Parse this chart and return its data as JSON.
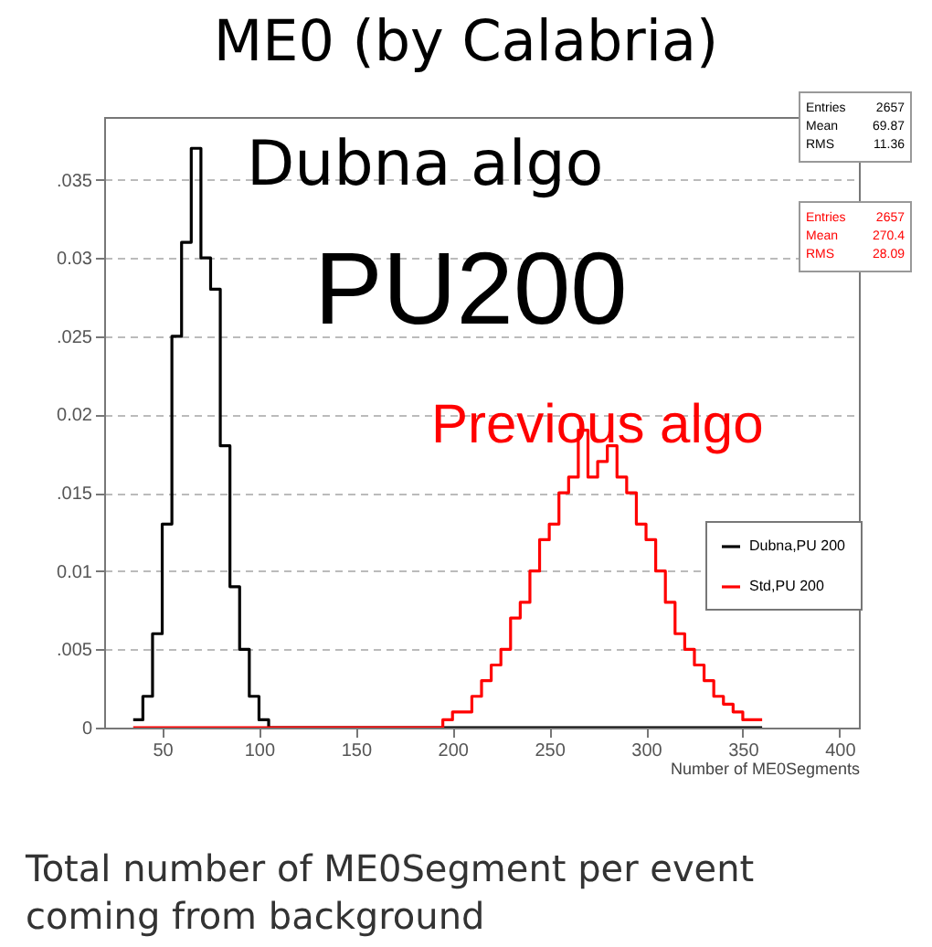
{
  "chart_data": {
    "type": "histogram",
    "title": "ME0 (by Calabria)",
    "xlabel": "Number of ME0Segments",
    "annotations": [
      "Dubna algo",
      "PU200",
      "Previous algo",
      "Entries 2657",
      "Mean 69.87",
      "RMS 11.36",
      "Entries 2657",
      "Mean 270.4",
      "RMS 28.09",
      "Total number of ME0Segment per event coming from background"
    ],
    "bins": [
      35,
      40,
      45,
      50,
      55,
      60,
      65,
      70,
      75,
      80,
      85,
      90,
      95,
      100,
      105,
      110,
      115,
      120,
      125,
      130,
      135,
      140,
      145,
      150,
      155,
      160,
      165,
      170,
      175,
      180,
      185,
      190,
      195,
      200,
      205,
      210,
      215,
      220,
      225,
      230,
      235,
      240,
      245,
      250,
      255,
      260,
      265,
      270,
      275,
      280,
      285,
      290,
      295,
      300,
      305,
      310,
      315,
      320,
      325,
      330,
      335,
      340,
      345,
      350,
      355,
      360
    ],
    "series": [
      {
        "name": "Dubna,PU 200",
        "color": "#000000",
        "values": [
          0.0005,
          0.002,
          0.006,
          0.013,
          0.025,
          0.031,
          0.037,
          0.03,
          0.028,
          0.018,
          0.009,
          0.005,
          0.002,
          0.0005,
          0,
          0,
          0,
          0,
          0,
          0,
          0,
          0,
          0,
          0,
          0,
          0,
          0,
          0,
          0,
          0,
          0,
          0,
          0,
          0,
          0,
          0,
          0,
          0,
          0,
          0,
          0,
          0,
          0,
          0,
          0,
          0,
          0,
          0,
          0,
          0,
          0,
          0,
          0,
          0,
          0,
          0,
          0,
          0,
          0,
          0,
          0,
          0,
          0,
          0,
          0
        ]
      },
      {
        "name": "Std,PU 200",
        "color": "#ff0000",
        "values": [
          0,
          0,
          0,
          0,
          0,
          0,
          0,
          0,
          0,
          0,
          0,
          0,
          0,
          0,
          0,
          0,
          0,
          0,
          0,
          0,
          0,
          0,
          0,
          0,
          0,
          0,
          0,
          0,
          0,
          0,
          0,
          0,
          0.0005,
          0.001,
          0.001,
          0.002,
          0.003,
          0.004,
          0.005,
          0.007,
          0.008,
          0.01,
          0.012,
          0.013,
          0.015,
          0.016,
          0.019,
          0.016,
          0.017,
          0.018,
          0.016,
          0.015,
          0.013,
          0.012,
          0.01,
          0.008,
          0.006,
          0.005,
          0.004,
          0.003,
          0.002,
          0.0015,
          0.001,
          0.0005,
          0.0005
        ]
      }
    ],
    "xlim": [
      20,
      410
    ],
    "xticks": [
      50,
      100,
      150,
      200,
      250,
      300,
      350,
      400
    ],
    "ylim": [
      0,
      0.039
    ],
    "yticks": [
      {
        "value": 0,
        "label": "0"
      },
      {
        "value": 0.005,
        "label": ".005"
      },
      {
        "value": 0.01,
        "label": "0.01"
      },
      {
        "value": 0.015,
        "label": ".015"
      },
      {
        "value": 0.02,
        "label": "0.02"
      },
      {
        "value": 0.025,
        "label": ".025"
      },
      {
        "value": 0.03,
        "label": "0.03"
      },
      {
        "value": 0.035,
        "label": ".035"
      }
    ],
    "grid": "y",
    "legend": "right"
  }
}
